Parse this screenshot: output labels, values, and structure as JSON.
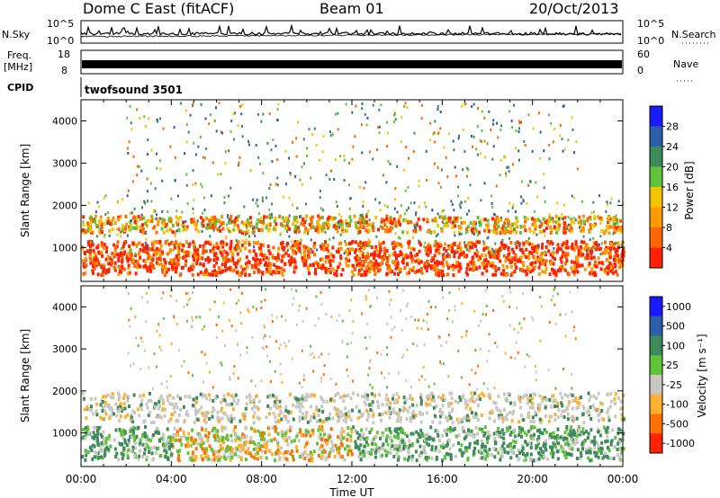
{
  "header": {
    "station": "Dome C East (fitACF)",
    "beam": "Beam 01",
    "date": "20/Oct/2013"
  },
  "panels": {
    "nsky": {
      "label": "N.Sky",
      "tick_top": "10^5",
      "tick_bottom": "10^0"
    },
    "nsearch": {
      "label": "N.Search",
      "tick_top": "10^5",
      "tick_bottom": "10^0"
    },
    "freq": {
      "label_line1": "Freq.",
      "label_line2": "[MHz]",
      "tick_top": "18",
      "tick_bottom": "8"
    },
    "nave": {
      "label": "Nave",
      "tick_top": "60",
      "tick_bottom": "0"
    },
    "cpid": {
      "label": "CPID",
      "program": "twofsound 3501"
    }
  },
  "chart_data": [
    {
      "type": "heatmap",
      "name": "power",
      "ylabel": "Slant Range [km]",
      "yticks": [
        1000,
        2000,
        3000,
        4000
      ],
      "ylim": [
        200,
        4500
      ],
      "xlim_hours": [
        0,
        24
      ],
      "colorbar": {
        "label": "Power [dB]",
        "ticks": [
          "4",
          "8",
          "12",
          "16",
          "20",
          "24",
          "28"
        ],
        "colors": [
          "#1a1aff",
          "#2d5fa8",
          "#3d8a5a",
          "#5fc43a",
          "#f5c400",
          "#ff9900",
          "#ff6600",
          "#ff2200"
        ]
      },
      "bands": [
        {
          "range_km": [
            300,
            1100
          ],
          "level": "strong"
        },
        {
          "range_km": [
            1350,
            1700
          ],
          "level": "medium"
        },
        {
          "range_km": [
            1800,
            2300
          ],
          "level": "weak"
        },
        {
          "range_km": [
            2500,
            4400
          ],
          "level": "sparse"
        }
      ]
    },
    {
      "type": "heatmap",
      "name": "velocity",
      "ylabel": "Slant Range [km]",
      "yticks": [
        1000,
        2000,
        3000,
        4000
      ],
      "ylim": [
        200,
        4500
      ],
      "xlim_hours": [
        0,
        24
      ],
      "colorbar": {
        "label": "Velocity [m s⁻¹]",
        "ticks": [
          "1000",
          "500",
          "100",
          "25",
          "-25",
          "-100",
          "-500",
          "-1000"
        ],
        "colors": [
          "#1a1aff",
          "#2d5fa8",
          "#3d8a5a",
          "#5fc43a",
          "#c8c8c0",
          "#ffb030",
          "#ff7000",
          "#ff2200"
        ]
      }
    }
  ],
  "xaxis": {
    "label": "Time UT",
    "ticks": [
      "00:00",
      "04:00",
      "08:00",
      "12:00",
      "16:00",
      "20:00",
      "00:00"
    ]
  }
}
